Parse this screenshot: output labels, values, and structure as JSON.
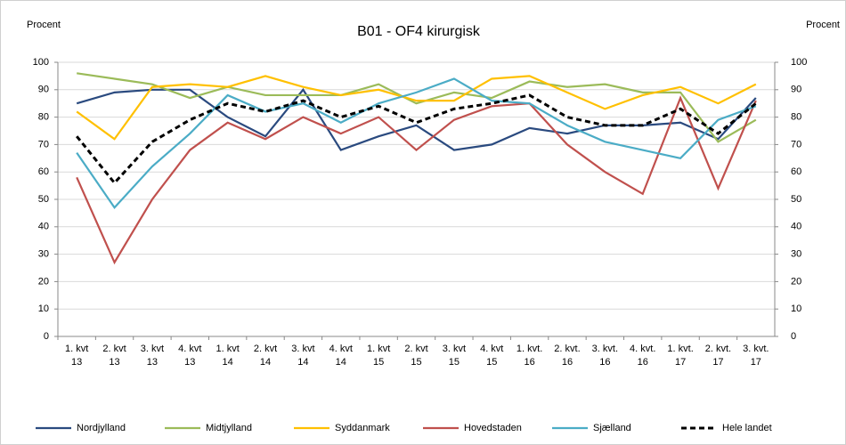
{
  "chart_data": {
    "type": "line",
    "title": "B01 - OF4 kirurgisk",
    "y_label": "Procent",
    "y2_label": "Procent",
    "categories": [
      [
        "1. kvt",
        "13"
      ],
      [
        "2. kvt",
        "13"
      ],
      [
        "3. kvt",
        "13"
      ],
      [
        "4. kvt",
        "13"
      ],
      [
        "1. kvt",
        "14"
      ],
      [
        "2. kvt",
        "14"
      ],
      [
        "3. kvt",
        "14"
      ],
      [
        "4. kvt",
        "14"
      ],
      [
        "1. kvt",
        "15"
      ],
      [
        "2. kvt",
        "15"
      ],
      [
        "3. kvt",
        "15"
      ],
      [
        "4. kvt",
        "15"
      ],
      [
        "1. kvt.",
        "16"
      ],
      [
        "2. kvt.",
        "16"
      ],
      [
        "3. kvt.",
        "16"
      ],
      [
        "4. kvt.",
        "16"
      ],
      [
        "1. kvt.",
        "17"
      ],
      [
        "2. kvt.",
        "17"
      ],
      [
        "3. kvt.",
        "17"
      ]
    ],
    "series": [
      {
        "name": "Nordjylland",
        "color": "#2a4a7f",
        "dashed": false,
        "values": [
          85,
          89,
          90,
          90,
          80,
          73,
          90,
          68,
          73,
          77,
          68,
          70,
          76,
          74,
          77,
          77,
          78,
          72,
          87
        ]
      },
      {
        "name": "Midtjylland",
        "color": "#9bbb59",
        "dashed": false,
        "values": [
          96,
          94,
          92,
          87,
          91,
          88,
          88,
          88,
          92,
          85,
          89,
          87,
          93,
          91,
          92,
          89,
          89,
          71,
          79
        ]
      },
      {
        "name": "Syddanmark",
        "color": "#ffc000",
        "dashed": false,
        "values": [
          82,
          72,
          91,
          92,
          91,
          95,
          91,
          88,
          90,
          86,
          86,
          94,
          95,
          89,
          83,
          88,
          91,
          85,
          92
        ]
      },
      {
        "name": "Hovedstaden",
        "color": "#c0504d",
        "dashed": false,
        "values": [
          58,
          27,
          50,
          68,
          78,
          72,
          80,
          74,
          80,
          68,
          79,
          84,
          85,
          70,
          60,
          52,
          87,
          54,
          86
        ]
      },
      {
        "name": "Sjælland",
        "color": "#4bacc6",
        "dashed": false,
        "values": [
          67,
          47,
          62,
          74,
          88,
          82,
          85,
          78,
          85,
          89,
          94,
          86,
          85,
          77,
          71,
          68,
          65,
          79,
          84
        ]
      },
      {
        "name": "Hele landet",
        "color": "#000000",
        "dashed": true,
        "values": [
          73,
          56,
          71,
          79,
          85,
          82,
          86,
          80,
          84,
          78,
          83,
          85,
          88,
          80,
          77,
          77,
          83,
          74,
          85
        ]
      }
    ],
    "ylim": [
      0,
      100
    ],
    "yticks": [
      0,
      10,
      20,
      30,
      40,
      50,
      60,
      70,
      80,
      90,
      100
    ],
    "y2lim": [
      0,
      100
    ],
    "y2ticks": [
      0,
      10,
      20,
      30,
      40,
      50,
      60,
      70,
      80,
      90,
      100
    ],
    "grid": true,
    "legend": "bottom"
  }
}
